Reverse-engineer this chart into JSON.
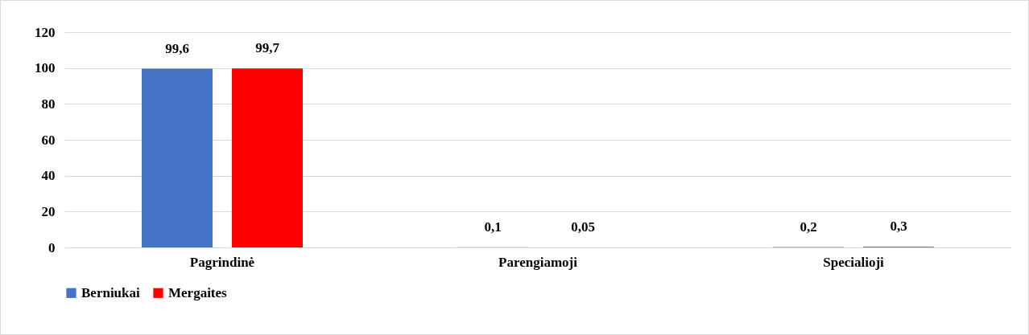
{
  "chart_data": {
    "type": "bar",
    "categories": [
      "Pagrindinė",
      "Parengiamoji",
      "Specialioji"
    ],
    "series": [
      {
        "name": "Berniukai",
        "color": "#4472c4",
        "values": [
          99.6,
          0.1,
          0.2
        ],
        "value_labels": [
          "99,6",
          "0,1",
          "0,2"
        ]
      },
      {
        "name": "Mergaites",
        "color": "#ff0000",
        "values": [
          99.7,
          0.05,
          0.3
        ],
        "value_labels": [
          "99,7",
          "0,05",
          "0,3"
        ]
      }
    ],
    "ylim": [
      0,
      120
    ],
    "yticks": [
      0,
      20,
      40,
      60,
      80,
      100,
      120
    ],
    "grid": "y",
    "legend": "bottom"
  }
}
